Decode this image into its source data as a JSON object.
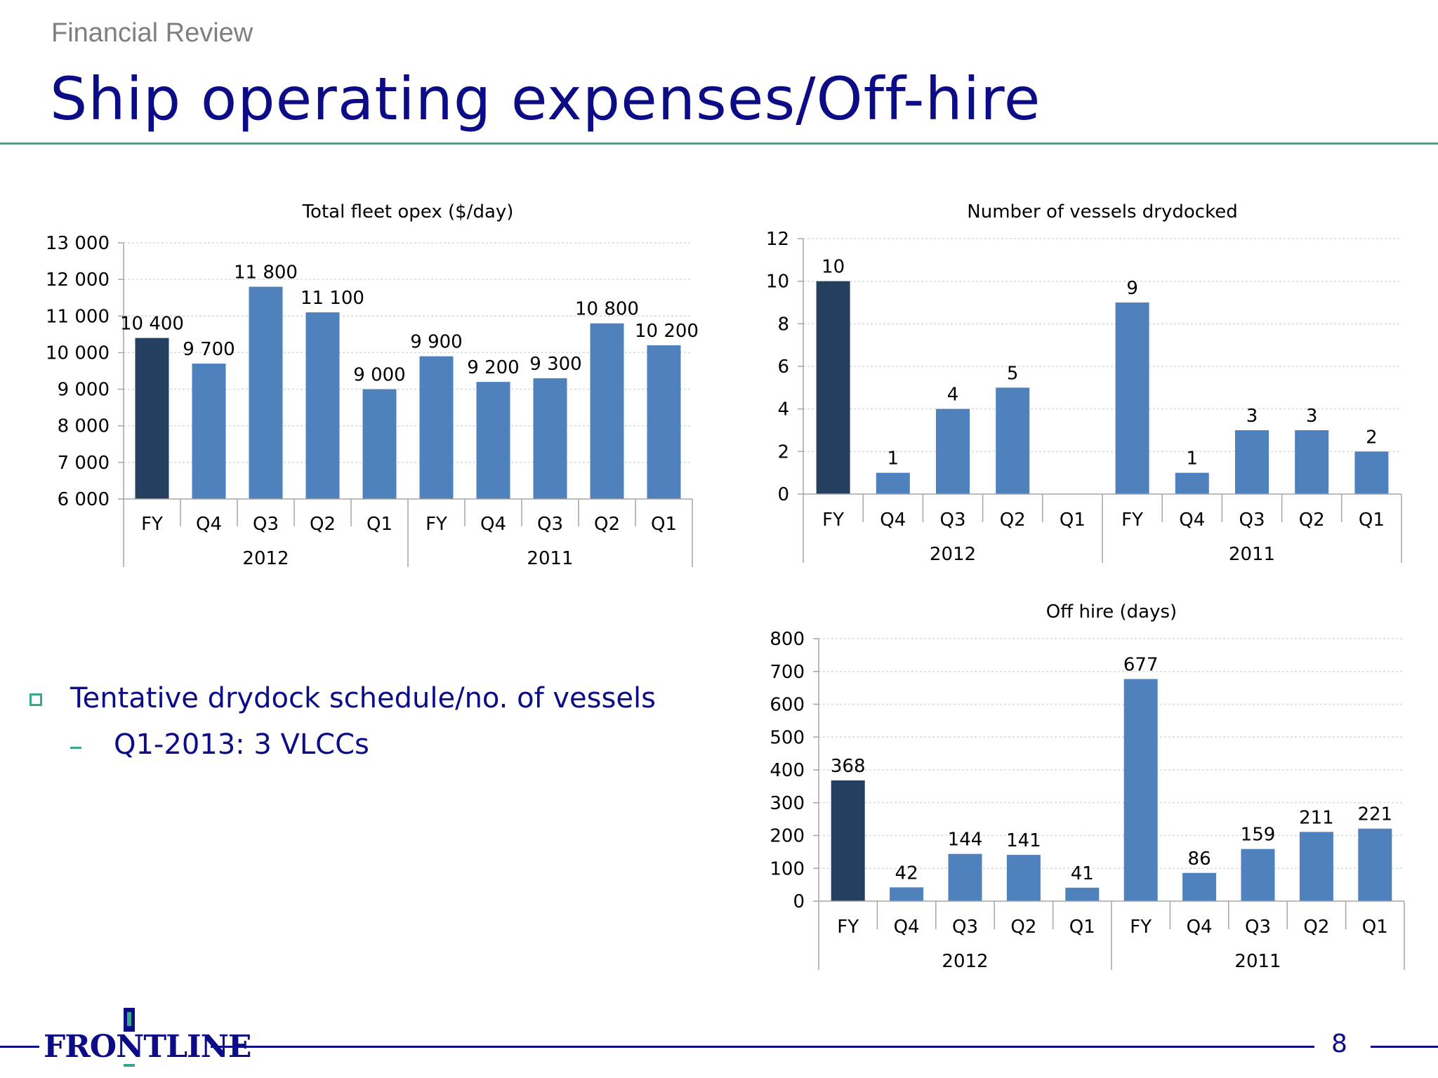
{
  "header": {
    "section": "Financial Review",
    "title": "Ship operating expenses/Off-hire"
  },
  "colors": {
    "accent": "#3aa88a",
    "title": "#0b0c86",
    "bar": "#4f81bd",
    "bar_highlight": "#243f60"
  },
  "chart_data": [
    {
      "type": "bar",
      "title": "Total fleet opex ($/day)",
      "categories": [
        "FY",
        "Q4",
        "Q3",
        "Q2",
        "Q1",
        "FY",
        "Q4",
        "Q3",
        "Q2",
        "Q1"
      ],
      "groups": [
        {
          "label": "2012",
          "span": 5
        },
        {
          "label": "2011",
          "span": 5
        }
      ],
      "values": [
        10400,
        9700,
        11800,
        11100,
        9000,
        9900,
        9200,
        9300,
        10800,
        10200
      ],
      "data_labels": [
        "10 400",
        "9 700",
        "11 800",
        "11 100",
        "9 000",
        "9 900",
        "9 200",
        "9 300",
        "10 800",
        "10 200"
      ],
      "highlight_index": 0,
      "ylim": [
        6000,
        13000
      ],
      "yticks": [
        6000,
        7000,
        8000,
        9000,
        10000,
        11000,
        12000,
        13000
      ],
      "ytick_labels": [
        "6 000",
        "7 000",
        "8 000",
        "9 000",
        "10 000",
        "11 000",
        "12 000",
        "13 000"
      ],
      "grid": true,
      "xlabel": "",
      "ylabel": ""
    },
    {
      "type": "bar",
      "title": "Number of vessels drydocked",
      "categories": [
        "FY",
        "Q4",
        "Q3",
        "Q2",
        "Q1",
        "FY",
        "Q4",
        "Q3",
        "Q2",
        "Q1"
      ],
      "groups": [
        {
          "label": "2012",
          "span": 5
        },
        {
          "label": "2011",
          "span": 5
        }
      ],
      "values": [
        10,
        1,
        4,
        5,
        0,
        9,
        1,
        3,
        3,
        2
      ],
      "data_labels": [
        "10",
        "1",
        "4",
        "5",
        "",
        "9",
        "1",
        "3",
        "3",
        "2"
      ],
      "highlight_index": 0,
      "ylim": [
        0,
        12
      ],
      "yticks": [
        0,
        2,
        4,
        6,
        8,
        10,
        12
      ],
      "ytick_labels": [
        "0",
        "2",
        "4",
        "6",
        "8",
        "10",
        "12"
      ],
      "grid": true,
      "xlabel": "",
      "ylabel": ""
    },
    {
      "type": "bar",
      "title": "Off hire (days)",
      "categories": [
        "FY",
        "Q4",
        "Q3",
        "Q2",
        "Q1",
        "FY",
        "Q4",
        "Q3",
        "Q2",
        "Q1"
      ],
      "groups": [
        {
          "label": "2012",
          "span": 5
        },
        {
          "label": "2011",
          "span": 5
        }
      ],
      "values": [
        368,
        42,
        144,
        141,
        41,
        677,
        86,
        159,
        211,
        221
      ],
      "data_labels": [
        "368",
        "42",
        "144",
        "141",
        "41",
        "677",
        "86",
        "159",
        "211",
        "221"
      ],
      "highlight_index": 0,
      "ylim": [
        0,
        800
      ],
      "yticks": [
        0,
        100,
        200,
        300,
        400,
        500,
        600,
        700,
        800
      ],
      "ytick_labels": [
        "0",
        "100",
        "200",
        "300",
        "400",
        "500",
        "600",
        "700",
        "800"
      ],
      "grid": true,
      "xlabel": "",
      "ylabel": ""
    }
  ],
  "bullets": {
    "main": "Tentative drydock schedule/no. of vessels",
    "sub": "Q1-2013: 3 VLCCs"
  },
  "footer": {
    "logo_text": "FRONTLINE",
    "page_number": "8"
  }
}
